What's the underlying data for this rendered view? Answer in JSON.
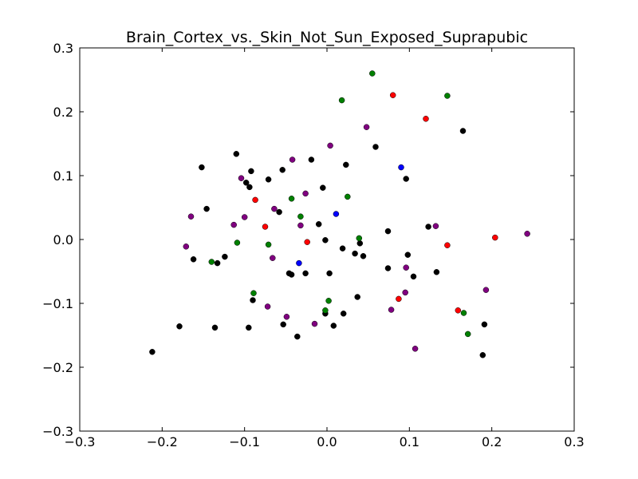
{
  "chart_data": {
    "type": "scatter",
    "title": "Brain_Cortex_vs._Skin_Not_Sun_Exposed_Suprapubic",
    "xlabel": "",
    "ylabel": "",
    "xlim": [
      -0.3,
      0.3
    ],
    "ylim": [
      -0.3,
      0.3
    ],
    "x_ticks": [
      -0.3,
      -0.2,
      -0.1,
      0.0,
      0.1,
      0.2,
      0.3
    ],
    "x_tick_labels": [
      "−0.3",
      "−0.2",
      "−0.1",
      "0.0",
      "0.1",
      "0.2",
      "0.3"
    ],
    "y_ticks": [
      -0.3,
      -0.2,
      -0.1,
      0.0,
      0.1,
      0.2,
      0.3
    ],
    "y_tick_labels": [
      "−0.3",
      "−0.2",
      "−0.1",
      "0.0",
      "0.1",
      "0.2",
      "0.3"
    ],
    "grid": false,
    "series": [
      {
        "color": "#000000",
        "points": [
          [
            -0.212,
            -0.176
          ],
          [
            -0.179,
            -0.136
          ],
          [
            -0.162,
            -0.031
          ],
          [
            -0.152,
            0.113
          ],
          [
            -0.146,
            0.048
          ],
          [
            -0.136,
            -0.138
          ],
          [
            -0.133,
            -0.037
          ],
          [
            -0.124,
            -0.027
          ],
          [
            -0.11,
            0.134
          ],
          [
            -0.098,
            0.089
          ],
          [
            -0.094,
            0.082
          ],
          [
            -0.092,
            0.107
          ],
          [
            -0.095,
            -0.138
          ],
          [
            -0.09,
            -0.095
          ],
          [
            -0.071,
            0.094
          ],
          [
            -0.058,
            0.043
          ],
          [
            -0.054,
            0.109
          ],
          [
            -0.053,
            -0.133
          ],
          [
            -0.046,
            -0.053
          ],
          [
            -0.043,
            -0.055
          ],
          [
            -0.036,
            -0.152
          ],
          [
            -0.026,
            -0.053
          ],
          [
            -0.019,
            0.125
          ],
          [
            -0.01,
            0.024
          ],
          [
            -0.005,
            0.081
          ],
          [
            -0.002,
            -0.001
          ],
          [
            -0.002,
            -0.116
          ],
          [
            0.003,
            -0.053
          ],
          [
            0.008,
            -0.135
          ],
          [
            0.019,
            -0.014
          ],
          [
            0.02,
            -0.116
          ],
          [
            0.023,
            0.117
          ],
          [
            0.034,
            -0.022
          ],
          [
            0.037,
            -0.09
          ],
          [
            0.04,
            -0.006
          ],
          [
            0.044,
            -0.026
          ],
          [
            0.059,
            0.145
          ],
          [
            0.074,
            0.013
          ],
          [
            0.074,
            -0.045
          ],
          [
            0.096,
            0.095
          ],
          [
            0.098,
            -0.024
          ],
          [
            0.105,
            -0.058
          ],
          [
            0.123,
            0.02
          ],
          [
            0.133,
            -0.051
          ],
          [
            0.165,
            0.17
          ],
          [
            0.189,
            -0.181
          ],
          [
            0.191,
            -0.133
          ]
        ]
      },
      {
        "color": "#800080",
        "points": [
          [
            -0.171,
            -0.011
          ],
          [
            -0.165,
            0.036
          ],
          [
            -0.113,
            0.023
          ],
          [
            -0.104,
            0.096
          ],
          [
            -0.1,
            0.035
          ],
          [
            -0.072,
            -0.105
          ],
          [
            -0.066,
            -0.029
          ],
          [
            -0.064,
            0.048
          ],
          [
            -0.049,
            -0.121
          ],
          [
            -0.042,
            0.125
          ],
          [
            -0.032,
            0.022
          ],
          [
            -0.026,
            0.072
          ],
          [
            -0.015,
            -0.132
          ],
          [
            0.004,
            0.147
          ],
          [
            0.048,
            0.176
          ],
          [
            0.078,
            -0.11
          ],
          [
            0.095,
            -0.083
          ],
          [
            0.096,
            -0.044
          ],
          [
            0.107,
            -0.171
          ],
          [
            0.132,
            0.021
          ],
          [
            0.193,
            -0.079
          ],
          [
            0.243,
            0.009
          ]
        ]
      },
      {
        "color": "#008000",
        "points": [
          [
            -0.14,
            -0.035
          ],
          [
            -0.109,
            -0.005
          ],
          [
            -0.089,
            -0.084
          ],
          [
            -0.071,
            -0.008
          ],
          [
            -0.043,
            0.064
          ],
          [
            -0.032,
            0.036
          ],
          [
            -0.002,
            -0.111
          ],
          [
            0.002,
            -0.096
          ],
          [
            0.018,
            0.218
          ],
          [
            0.025,
            0.067
          ],
          [
            0.039,
            0.002
          ],
          [
            0.055,
            0.26
          ],
          [
            0.146,
            0.225
          ],
          [
            0.166,
            -0.115
          ],
          [
            0.171,
            -0.148
          ]
        ]
      },
      {
        "color": "#ff0000",
        "points": [
          [
            -0.087,
            0.062
          ],
          [
            -0.075,
            0.02
          ],
          [
            -0.024,
            -0.004
          ],
          [
            0.08,
            0.226
          ],
          [
            0.087,
            -0.093
          ],
          [
            0.12,
            0.189
          ],
          [
            0.146,
            -0.009
          ],
          [
            0.159,
            -0.111
          ],
          [
            0.204,
            0.003
          ]
        ]
      },
      {
        "color": "#0000ff",
        "points": [
          [
            -0.034,
            -0.037
          ],
          [
            0.011,
            0.04
          ],
          [
            0.09,
            0.113
          ]
        ]
      }
    ]
  }
}
